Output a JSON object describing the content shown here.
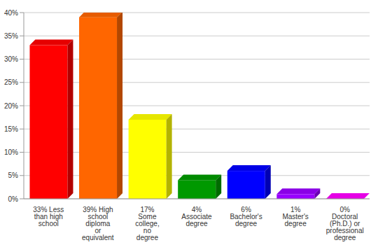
{
  "chart_data": {
    "type": "bar",
    "categories": [
      "33% Less than high school",
      "39% High school diploma or equivalent",
      "17% Some college, no degree",
      "4% Associate degree",
      "6% Bachelor's degree",
      "1% Master's degree",
      "0% Doctoral (Ph.D.) or professional degree"
    ],
    "values": [
      33,
      39,
      17,
      4,
      6,
      1,
      0
    ],
    "colors": [
      "#ff0000",
      "#ff6600",
      "#ffff00",
      "#009900",
      "#0000ff",
      "#9900ff",
      "#ff00ff"
    ],
    "ylim": [
      0,
      40
    ],
    "yticks": [
      {
        "value": 0,
        "label": "0%"
      },
      {
        "value": 5,
        "label": "5%"
      },
      {
        "value": 10,
        "label": "10%"
      },
      {
        "value": 15,
        "label": "15%"
      },
      {
        "value": 20,
        "label": "20%"
      },
      {
        "value": 25,
        "label": "25%"
      },
      {
        "value": 30,
        "label": "30%"
      },
      {
        "value": 35,
        "label": "35%"
      },
      {
        "value": 40,
        "label": "40%"
      }
    ],
    "grid": true
  }
}
